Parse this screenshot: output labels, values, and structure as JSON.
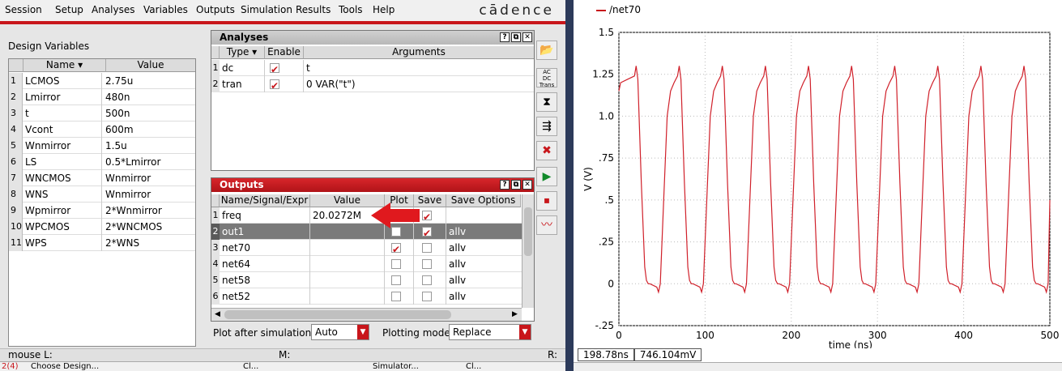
{
  "menu": [
    "Session",
    "Setup",
    "Analyses",
    "Variables",
    "Outputs",
    "Simulation",
    "Results",
    "Tools",
    "Help"
  ],
  "logo": "cādence",
  "design_variables": {
    "title": "Design Variables",
    "headers": [
      "Name",
      "Value"
    ],
    "rows": [
      {
        "num": "1",
        "name": "LCMOS",
        "value": "2.75u"
      },
      {
        "num": "2",
        "name": "Lmirror",
        "value": "480n"
      },
      {
        "num": "3",
        "name": "t",
        "value": "500n"
      },
      {
        "num": "4",
        "name": "Vcont",
        "value": "600m"
      },
      {
        "num": "5",
        "name": "Wnmirror",
        "value": "1.5u"
      },
      {
        "num": "6",
        "name": "LS",
        "value": "0.5*Lmirror"
      },
      {
        "num": "7",
        "name": "WNCMOS",
        "value": "Wnmirror"
      },
      {
        "num": "8",
        "name": "WNS",
        "value": "Wnmirror"
      },
      {
        "num": "9",
        "name": "Wpmirror",
        "value": "2*Wnmirror"
      },
      {
        "num": "10",
        "name": "WPCMOS",
        "value": "2*WNCMOS"
      },
      {
        "num": "11",
        "name": "WPS",
        "value": "2*WNS"
      }
    ]
  },
  "analyses": {
    "title": "Analyses",
    "headers": [
      "Type",
      "Enable",
      "Arguments"
    ],
    "rows": [
      {
        "num": "1",
        "type": "dc",
        "enabled": true,
        "args": "t"
      },
      {
        "num": "2",
        "type": "tran",
        "enabled": true,
        "args": "0 VAR(\"t\")"
      }
    ]
  },
  "outputs": {
    "title": "Outputs",
    "headers": [
      "Name/Signal/Expr",
      "Value",
      "Plot",
      "Save",
      "Save Options"
    ],
    "rows": [
      {
        "num": "1",
        "name": "freq",
        "value": "20.0272M",
        "plot": false,
        "save": true,
        "opts": ""
      },
      {
        "num": "2",
        "name": "out1",
        "value": "",
        "plot": false,
        "save": true,
        "opts": "allv"
      },
      {
        "num": "3",
        "name": "net70",
        "value": "",
        "plot": true,
        "save": false,
        "opts": "allv"
      },
      {
        "num": "4",
        "name": "net64",
        "value": "",
        "plot": false,
        "save": false,
        "opts": "allv"
      },
      {
        "num": "5",
        "name": "net58",
        "value": "",
        "plot": false,
        "save": false,
        "opts": "allv"
      },
      {
        "num": "6",
        "name": "net52",
        "value": "",
        "plot": false,
        "save": false,
        "opts": "allv"
      }
    ]
  },
  "plot_options": {
    "plot_after_label": "Plot after simulation:",
    "plot_after_value": "Auto",
    "plotting_mode_label": "Plotting mode:",
    "plotting_mode_value": "Replace"
  },
  "mousebar": {
    "left": "mouse L:",
    "mid": "M:",
    "right": "R:"
  },
  "statusbar": [
    "2(4)",
    "Choose Design...",
    "Cl...",
    "Simulator...",
    "Cl..."
  ],
  "colors": {
    "accent": "#c8161b",
    "trace": "#d0202a"
  },
  "chart_data": {
    "type": "line",
    "legend": [
      "/net70"
    ],
    "xlabel": "time (ns)",
    "ylabel": "V (V)",
    "xlim": [
      0,
      500
    ],
    "ylim": [
      -0.25,
      1.5
    ],
    "xticks": [
      "0",
      "100",
      "200",
      "300",
      "400",
      "500"
    ],
    "yticks": [
      "-.25",
      "0",
      ".25",
      ".5",
      ".75",
      "1.0",
      "1.25",
      "1.5"
    ],
    "grid": true,
    "series": [
      {
        "name": "/net70",
        "x": [
          0,
          2,
          10,
          18,
          20,
          22,
          26,
          30,
          32,
          34,
          36,
          44,
          46,
          48,
          52,
          56,
          60,
          64,
          68,
          70,
          72,
          76,
          80,
          82,
          84,
          86,
          94,
          96,
          98,
          102,
          106,
          110,
          114,
          118,
          120,
          122,
          126,
          130,
          132,
          134,
          136,
          144,
          146,
          148,
          152,
          156,
          160,
          164,
          168,
          170,
          172,
          176,
          180,
          182,
          184,
          186,
          194,
          196,
          198,
          202,
          206,
          210,
          214,
          218,
          220,
          222,
          226,
          230,
          232,
          234,
          236,
          244,
          246,
          248,
          252,
          256,
          260,
          264,
          268,
          270,
          272,
          276,
          280,
          282,
          284,
          286,
          294,
          296,
          298,
          302,
          306,
          310,
          314,
          318,
          320,
          322,
          326,
          330,
          332,
          334,
          336,
          344,
          346,
          348,
          352,
          356,
          360,
          364,
          368,
          370,
          372,
          376,
          380,
          382,
          384,
          386,
          394,
          396,
          398,
          402,
          406,
          410,
          414,
          418,
          420,
          422,
          426,
          430,
          432,
          434,
          436,
          444,
          446,
          448,
          452,
          456,
          460,
          464,
          468,
          470,
          472,
          476,
          480,
          482,
          484,
          486,
          494,
          496,
          498,
          500
        ],
        "y": [
          1.15,
          1.2,
          1.22,
          1.24,
          1.3,
          1.22,
          0.6,
          0.1,
          0.02,
          0.0,
          0.0,
          -0.02,
          -0.05,
          0.0,
          0.5,
          1.0,
          1.15,
          1.2,
          1.24,
          1.3,
          1.22,
          0.6,
          0.1,
          0.02,
          0.0,
          0.0,
          -0.02,
          -0.05,
          0.0,
          0.5,
          1.0,
          1.15,
          1.2,
          1.24,
          1.3,
          1.22,
          0.6,
          0.1,
          0.02,
          0.0,
          0.0,
          -0.02,
          -0.05,
          0.0,
          0.5,
          1.0,
          1.15,
          1.2,
          1.24,
          1.3,
          1.22,
          0.6,
          0.1,
          0.02,
          0.0,
          0.0,
          -0.02,
          -0.05,
          0.0,
          0.5,
          1.0,
          1.15,
          1.2,
          1.24,
          1.3,
          1.22,
          0.6,
          0.1,
          0.02,
          0.0,
          0.0,
          -0.02,
          -0.05,
          0.0,
          0.5,
          1.0,
          1.15,
          1.2,
          1.24,
          1.3,
          1.22,
          0.6,
          0.1,
          0.02,
          0.0,
          0.0,
          -0.02,
          -0.05,
          0.0,
          0.5,
          1.0,
          1.15,
          1.2,
          1.24,
          1.3,
          1.22,
          0.6,
          0.1,
          0.02,
          0.0,
          0.0,
          -0.02,
          -0.05,
          0.0,
          0.5,
          1.0,
          1.15,
          1.2,
          1.24,
          1.3,
          1.22,
          0.6,
          0.1,
          0.02,
          0.0,
          0.0,
          -0.02,
          -0.05,
          0.0,
          0.5,
          1.0,
          1.15,
          1.2,
          1.24,
          1.3,
          1.22,
          0.6,
          0.1,
          0.02,
          0.0,
          0.0,
          -0.02,
          -0.05,
          0.0,
          0.5,
          1.0,
          1.15,
          1.2,
          1.24,
          1.3,
          1.22,
          0.6,
          0.1,
          0.02,
          0.0,
          0.0,
          -0.02,
          -0.05,
          0.0,
          0.5
        ]
      }
    ]
  },
  "readout": {
    "x": "198.78ns",
    "y": "746.104mV"
  }
}
